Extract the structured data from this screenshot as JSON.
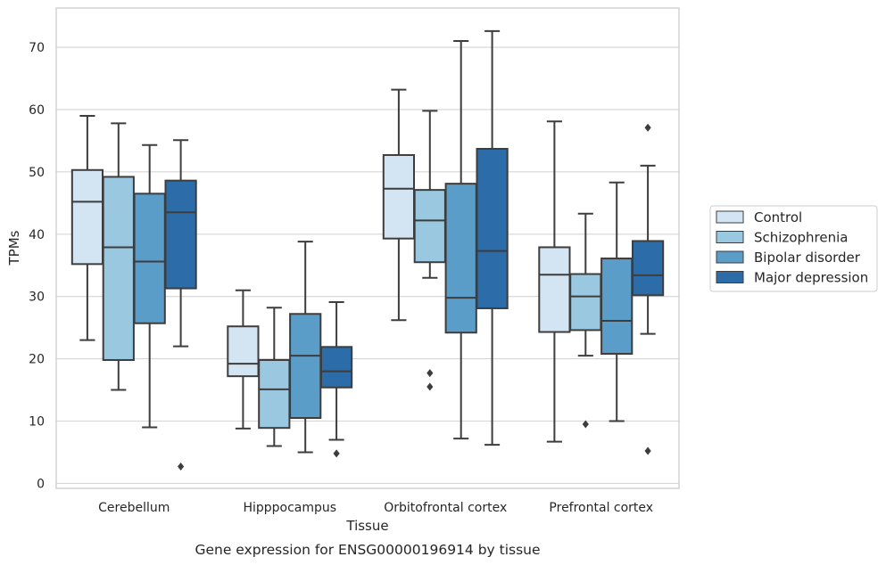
{
  "chart_data": {
    "type": "box",
    "title": "",
    "caption": "Gene expression for ENSG00000196914 by tissue",
    "xlabel": "Tissue",
    "ylabel": "TPMs",
    "ylim": [
      -0.8,
      76.3
    ],
    "yticks": [
      0,
      10,
      20,
      30,
      40,
      50,
      60,
      70
    ],
    "grid": "horizontal",
    "legend_position": "right",
    "categories": [
      "Cerebellum",
      "Hipppocampus",
      "Orbitofrontal cortex",
      "Prefrontal cortex"
    ],
    "series": [
      {
        "name": "Control",
        "color": "#d3e4f3",
        "boxes": [
          {
            "whisker_low": 23,
            "q1": 35.2,
            "median": 45.2,
            "q3": 50.3,
            "whisker_high": 59,
            "outliers": []
          },
          {
            "whisker_low": 8.8,
            "q1": 17.2,
            "median": 19.2,
            "q3": 25.2,
            "whisker_high": 31,
            "outliers": []
          },
          {
            "whisker_low": 26.2,
            "q1": 39.3,
            "median": 47.3,
            "q3": 52.7,
            "whisker_high": 63.2,
            "outliers": []
          },
          {
            "whisker_low": 6.7,
            "q1": 24.3,
            "median": 33.5,
            "q3": 37.9,
            "whisker_high": 58.1,
            "outliers": []
          }
        ]
      },
      {
        "name": "Schizophrenia",
        "color": "#9ac8e0",
        "boxes": [
          {
            "whisker_low": 15,
            "q1": 19.8,
            "median": 37.9,
            "q3": 49.2,
            "whisker_high": 57.8,
            "outliers": []
          },
          {
            "whisker_low": 6,
            "q1": 8.9,
            "median": 15.1,
            "q3": 19.8,
            "whisker_high": 28.2,
            "outliers": []
          },
          {
            "whisker_low": 33,
            "q1": 35.5,
            "median": 42.2,
            "q3": 47.1,
            "whisker_high": 59.8,
            "outliers": [
              17.7,
              15.5
            ]
          },
          {
            "whisker_low": 20.5,
            "q1": 24.6,
            "median": 30,
            "q3": 33.6,
            "whisker_high": 43.3,
            "outliers": [
              9.5
            ]
          }
        ]
      },
      {
        "name": "Bipolar disorder",
        "color": "#5a9dc9",
        "boxes": [
          {
            "whisker_low": 9,
            "q1": 25.7,
            "median": 35.6,
            "q3": 46.5,
            "whisker_high": 54.3,
            "outliers": []
          },
          {
            "whisker_low": 5,
            "q1": 10.5,
            "median": 20.5,
            "q3": 27.2,
            "whisker_high": 38.8,
            "outliers": []
          },
          {
            "whisker_low": 7.2,
            "q1": 24.2,
            "median": 29.8,
            "q3": 48.1,
            "whisker_high": 71,
            "outliers": []
          },
          {
            "whisker_low": 10,
            "q1": 20.8,
            "median": 26.1,
            "q3": 36.1,
            "whisker_high": 48.3,
            "outliers": []
          }
        ]
      },
      {
        "name": "Major depression",
        "color": "#2c6ca9",
        "boxes": [
          {
            "whisker_low": 22,
            "q1": 31.3,
            "median": 43.5,
            "q3": 48.6,
            "whisker_high": 55.1,
            "outliers": [
              2.7
            ]
          },
          {
            "whisker_low": 7,
            "q1": 15.4,
            "median": 18,
            "q3": 21.9,
            "whisker_high": 29.1,
            "outliers": [
              4.8
            ]
          },
          {
            "whisker_low": 6.2,
            "q1": 28.1,
            "median": 37.3,
            "q3": 53.7,
            "whisker_high": 72.6,
            "outliers": []
          },
          {
            "whisker_low": 24,
            "q1": 30.2,
            "median": 33.4,
            "q3": 38.9,
            "whisker_high": 51,
            "outliers": [
              57.1,
              5.2
            ]
          }
        ]
      }
    ]
  }
}
